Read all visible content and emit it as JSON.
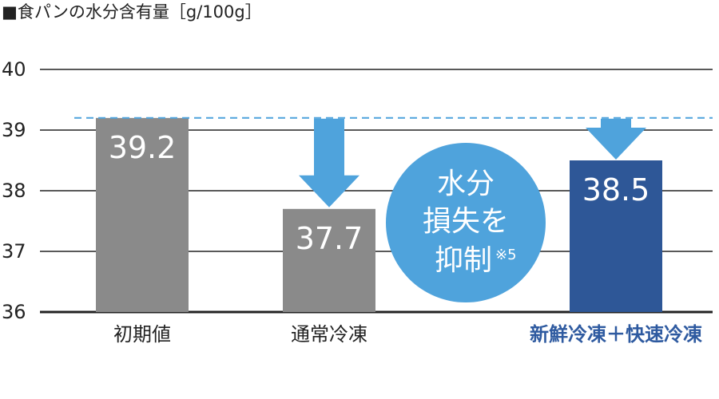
{
  "colors": {
    "gray_bar": "#8a8a8a",
    "blue_bar": "#2e5797",
    "arrow": "#4fa3dc",
    "circle": "#4fa3dc",
    "dashed_line": "#4fa3dc",
    "grid": "#222222",
    "highlight_label": "#2e5aa0"
  },
  "chart_data": {
    "type": "bar",
    "title": "■食パンの水分含有量［g/100g］",
    "categories": [
      "初期値",
      "通常冷凍",
      "新鮮冷凍＋快速冷凍"
    ],
    "values": [
      39.2,
      37.7,
      38.5
    ],
    "value_labels": [
      "39.2",
      "37.7",
      "38.5"
    ],
    "highlight_index": 2,
    "ylim": [
      36,
      40
    ],
    "yticks": [
      36,
      37,
      38,
      39,
      40
    ],
    "ytick_labels": [
      "36",
      "37",
      "38",
      "39",
      "40"
    ],
    "reference_line": {
      "value": 39.2,
      "style": "dashed"
    },
    "grid": true,
    "callout": {
      "lines": [
        "水分",
        "損失を",
        "抑制"
      ],
      "note": "※5"
    }
  }
}
